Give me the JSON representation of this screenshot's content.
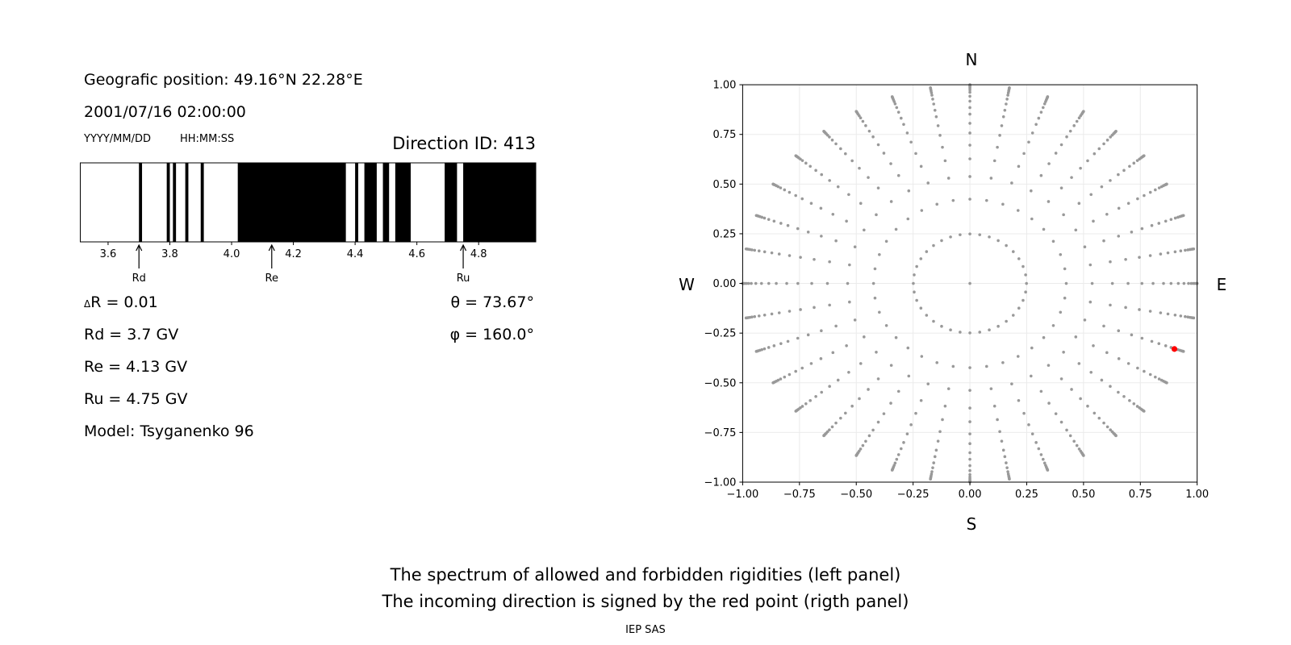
{
  "left_panel": {
    "position": "Geografic position: 49.16°N 22.28°E",
    "datetime": "2001/07/16 02:00:00",
    "date_format": "YYYY/MM/DD",
    "time_format": "HH:MM:SS",
    "direction_id": "Direction ID: 413",
    "delta_symbol": "Δ",
    "delta_r": "R = 0.01",
    "rd": "Rd = 3.7 GV",
    "re": "Re = 4.13 GV",
    "ru": "Ru = 4.75 GV",
    "model": "Model: Tsyganenko 96",
    "theta": "θ = 73.67°",
    "phi": "φ = 160.0°"
  },
  "chart_data": [
    {
      "type": "bar",
      "title": "Spectrum of allowed and forbidden rigidities",
      "xlim": [
        3.51,
        4.985
      ],
      "xticks": [
        "3.6",
        "3.8",
        "4.0",
        "4.2",
        "4.4",
        "4.6",
        "4.8"
      ],
      "xtick_values": [
        3.6,
        3.8,
        4.0,
        4.2,
        4.4,
        4.6,
        4.8
      ],
      "forbidden_bands": [
        [
          3.7,
          3.71
        ],
        [
          3.79,
          3.8
        ],
        [
          3.81,
          3.82
        ],
        [
          3.85,
          3.86
        ],
        [
          3.9,
          3.91
        ],
        [
          4.02,
          4.37
        ],
        [
          4.4,
          4.41
        ],
        [
          4.43,
          4.47
        ],
        [
          4.49,
          4.51
        ],
        [
          4.53,
          4.58
        ],
        [
          4.69,
          4.73
        ],
        [
          4.75,
          4.985
        ]
      ],
      "markers": [
        {
          "label": "Rd",
          "value": 3.7
        },
        {
          "label": "Re",
          "value": 4.13
        },
        {
          "label": "Ru",
          "value": 4.75
        }
      ]
    },
    {
      "type": "scatter",
      "xlim": [
        -1,
        1
      ],
      "ylim": [
        -1,
        1
      ],
      "grid": true,
      "ticks": [
        "−1.00",
        "−0.75",
        "−0.50",
        "−0.25",
        "0.00",
        "0.25",
        "0.50",
        "0.75",
        "1.00"
      ],
      "tick_values": [
        -1,
        -0.75,
        -0.5,
        -0.25,
        0,
        0.25,
        0.5,
        0.75,
        1
      ],
      "compass": {
        "n": "N",
        "s": "S",
        "w": "W",
        "e": "E"
      },
      "ray_step_deg": 10,
      "radii": [
        0.249,
        0.424,
        0.538,
        0.627,
        0.696,
        0.757,
        0.806,
        0.852,
        0.885,
        0.917,
        0.942,
        0.962,
        0.974,
        0.983,
        0.99,
        0.995,
        0.998,
        1.0
      ],
      "center_point": [
        0,
        0
      ],
      "point_color": "#999999",
      "incoming_direction": {
        "x": 0.9,
        "y": -0.33,
        "color": "#ff0000"
      }
    }
  ],
  "caption": {
    "line1": "The spectrum of allowed and forbidden rigidities (left panel)",
    "line2": "The incoming direction is signed by the red point (rigth panel)",
    "credit": "IEP SAS"
  }
}
